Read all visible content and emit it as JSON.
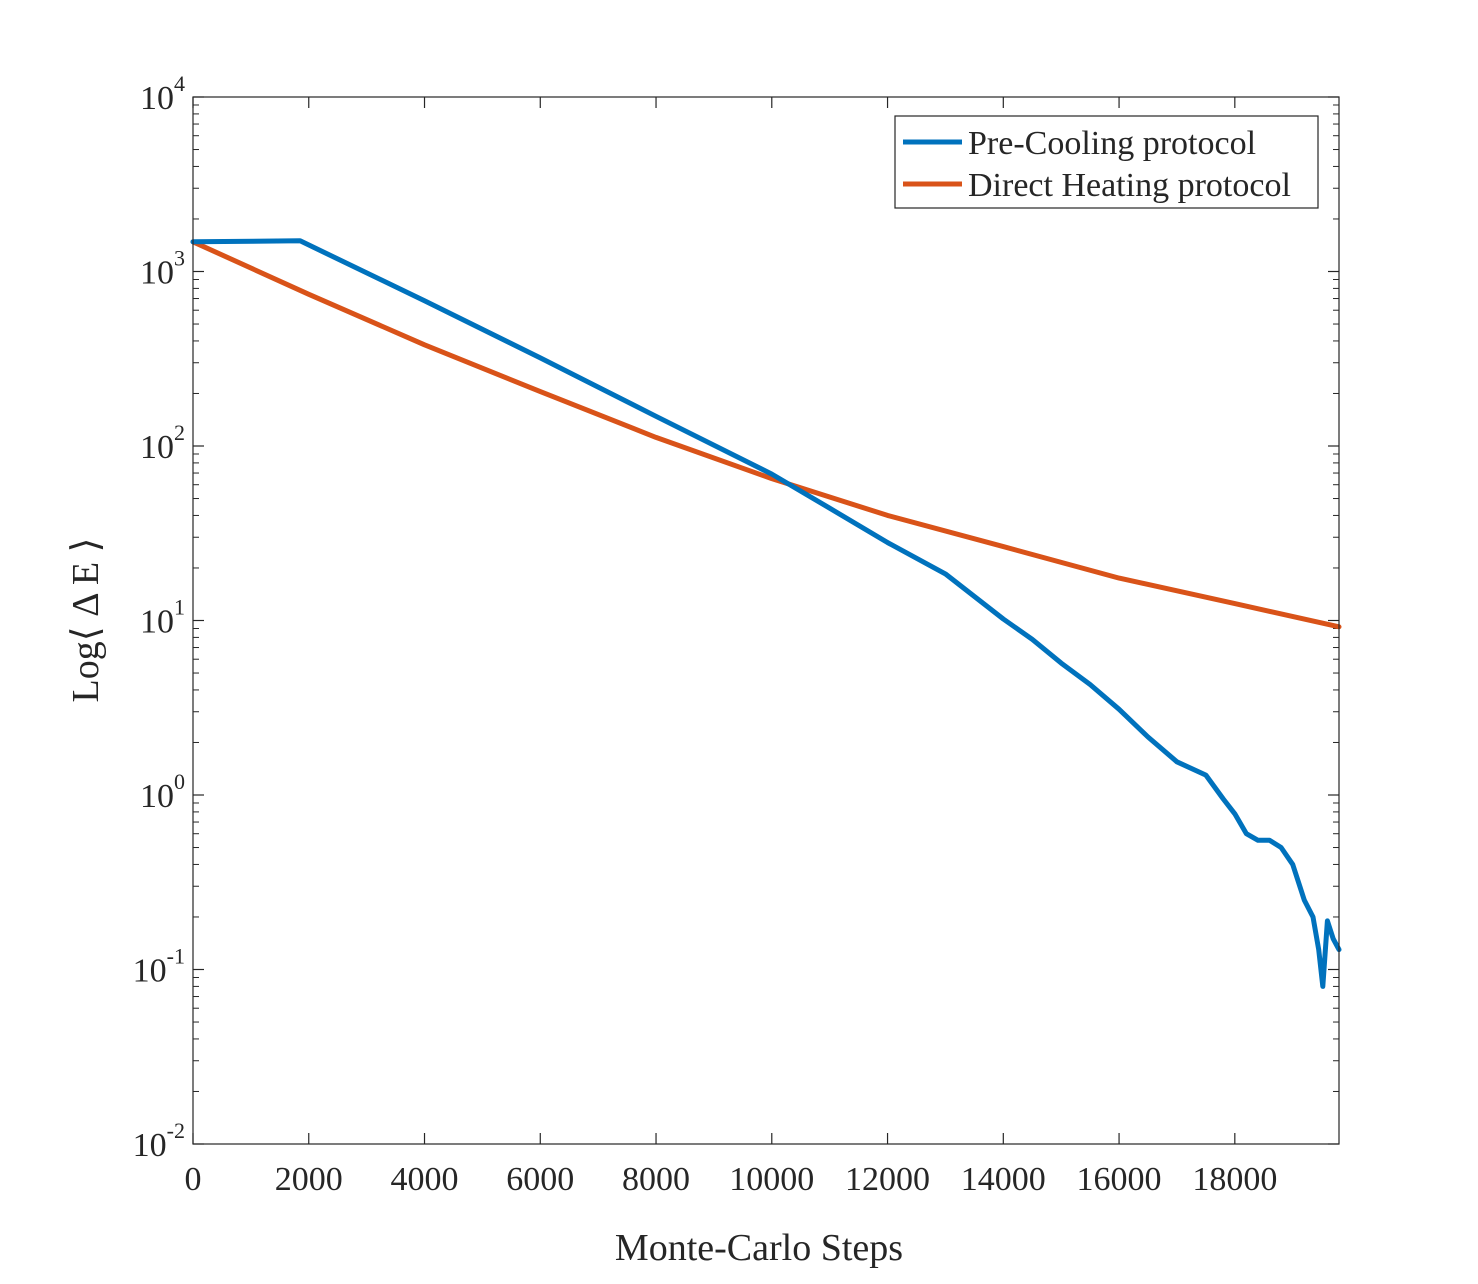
{
  "chart_data": {
    "type": "line",
    "title": "",
    "xlabel": "Monte-Carlo Steps",
    "ylabel": "Log⟨ Δ E ⟩",
    "yscale": "log",
    "xlim": [
      0,
      19800
    ],
    "ylim": [
      0.01,
      10000
    ],
    "grid": false,
    "legend_position": "top-right",
    "x_ticks": [
      0,
      2000,
      4000,
      6000,
      8000,
      10000,
      12000,
      14000,
      16000,
      18000
    ],
    "x_tick_labels": [
      "0",
      "2000",
      "4000",
      "6000",
      "8000",
      "10000",
      "12000",
      "14000",
      "16000",
      "18000"
    ],
    "y_ticks": [
      {
        "value": 0.01,
        "base": "10",
        "exp": "-2"
      },
      {
        "value": 0.1,
        "base": "10",
        "exp": "-1"
      },
      {
        "value": 1,
        "base": "10",
        "exp": "0"
      },
      {
        "value": 10,
        "base": "10",
        "exp": "1"
      },
      {
        "value": 100,
        "base": "10",
        "exp": "2"
      },
      {
        "value": 1000,
        "base": "10",
        "exp": "3"
      },
      {
        "value": 10000,
        "base": "10",
        "exp": "4"
      }
    ],
    "series": [
      {
        "name": "Pre-Cooling protocol",
        "color": "#0072BD",
        "x": [
          0,
          1850,
          4000,
          6000,
          8000,
          10000,
          11000,
          12000,
          13000,
          14000,
          14500,
          15000,
          15500,
          16000,
          16500,
          17000,
          17500,
          17800,
          18000,
          18200,
          18400,
          18600,
          18800,
          19000,
          19200,
          19350,
          19450,
          19520,
          19600,
          19700,
          19800
        ],
        "y": [
          1480,
          1500,
          680,
          320,
          148,
          69,
          44,
          28,
          18.5,
          10.2,
          7.8,
          5.7,
          4.3,
          3.1,
          2.15,
          1.55,
          1.3,
          0.95,
          0.78,
          0.6,
          0.55,
          0.55,
          0.5,
          0.4,
          0.25,
          0.2,
          0.13,
          0.08,
          0.19,
          0.15,
          0.13
        ]
      },
      {
        "name": "Direct Heating protocol",
        "color": "#D95319",
        "x": [
          0,
          2000,
          4000,
          6000,
          8000,
          10000,
          12000,
          14000,
          16000,
          18000,
          19800
        ],
        "y": [
          1480,
          740,
          380,
          205,
          112,
          65,
          40,
          26.5,
          17.5,
          12.5,
          9.2
        ]
      }
    ]
  }
}
